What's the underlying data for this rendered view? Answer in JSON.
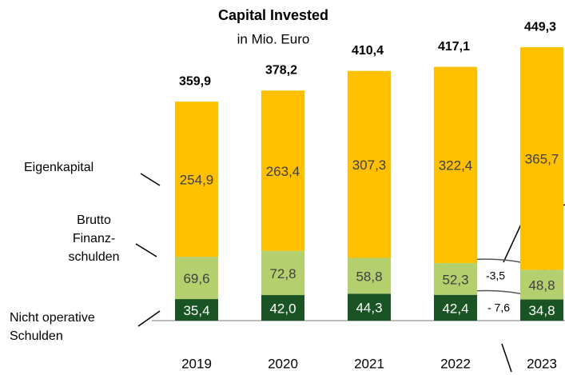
{
  "chart_data": {
    "type": "stacked-bar",
    "title": "Capital Invested",
    "subtitle": "in Mio. Euro",
    "categories": [
      "2019",
      "2020",
      "2021",
      "2022",
      "2023"
    ],
    "series": [
      {
        "name": "Nicht operative Schulden",
        "color": "#1b5424",
        "values": [
          35.4,
          42.0,
          44.3,
          42.4,
          34.8
        ],
        "value_labels": [
          "35,4",
          "42,0",
          "44,3",
          "42,4",
          "34,8"
        ]
      },
      {
        "name": "Brutto Finanz-schulden",
        "color": "#b4cf6d",
        "values": [
          69.6,
          72.8,
          58.8,
          52.3,
          48.8
        ],
        "value_labels": [
          "69,6",
          "72,8",
          "58,8",
          "52,3",
          "48,8"
        ]
      },
      {
        "name": "Eigenkapital",
        "color": "#ffc000",
        "values": [
          254.9,
          263.4,
          307.3,
          322.4,
          365.7
        ],
        "value_labels": [
          "254,9",
          "263,4",
          "307,3",
          "322,4",
          "365,7"
        ]
      }
    ],
    "totals": [
      359.9,
      378.2,
      410.4,
      417.1,
      449.3
    ],
    "total_labels": [
      "359,9",
      "378,2",
      "410,4",
      "417,1",
      "449,3"
    ],
    "annotations": [
      "-3,5",
      "- 7,6"
    ]
  }
}
